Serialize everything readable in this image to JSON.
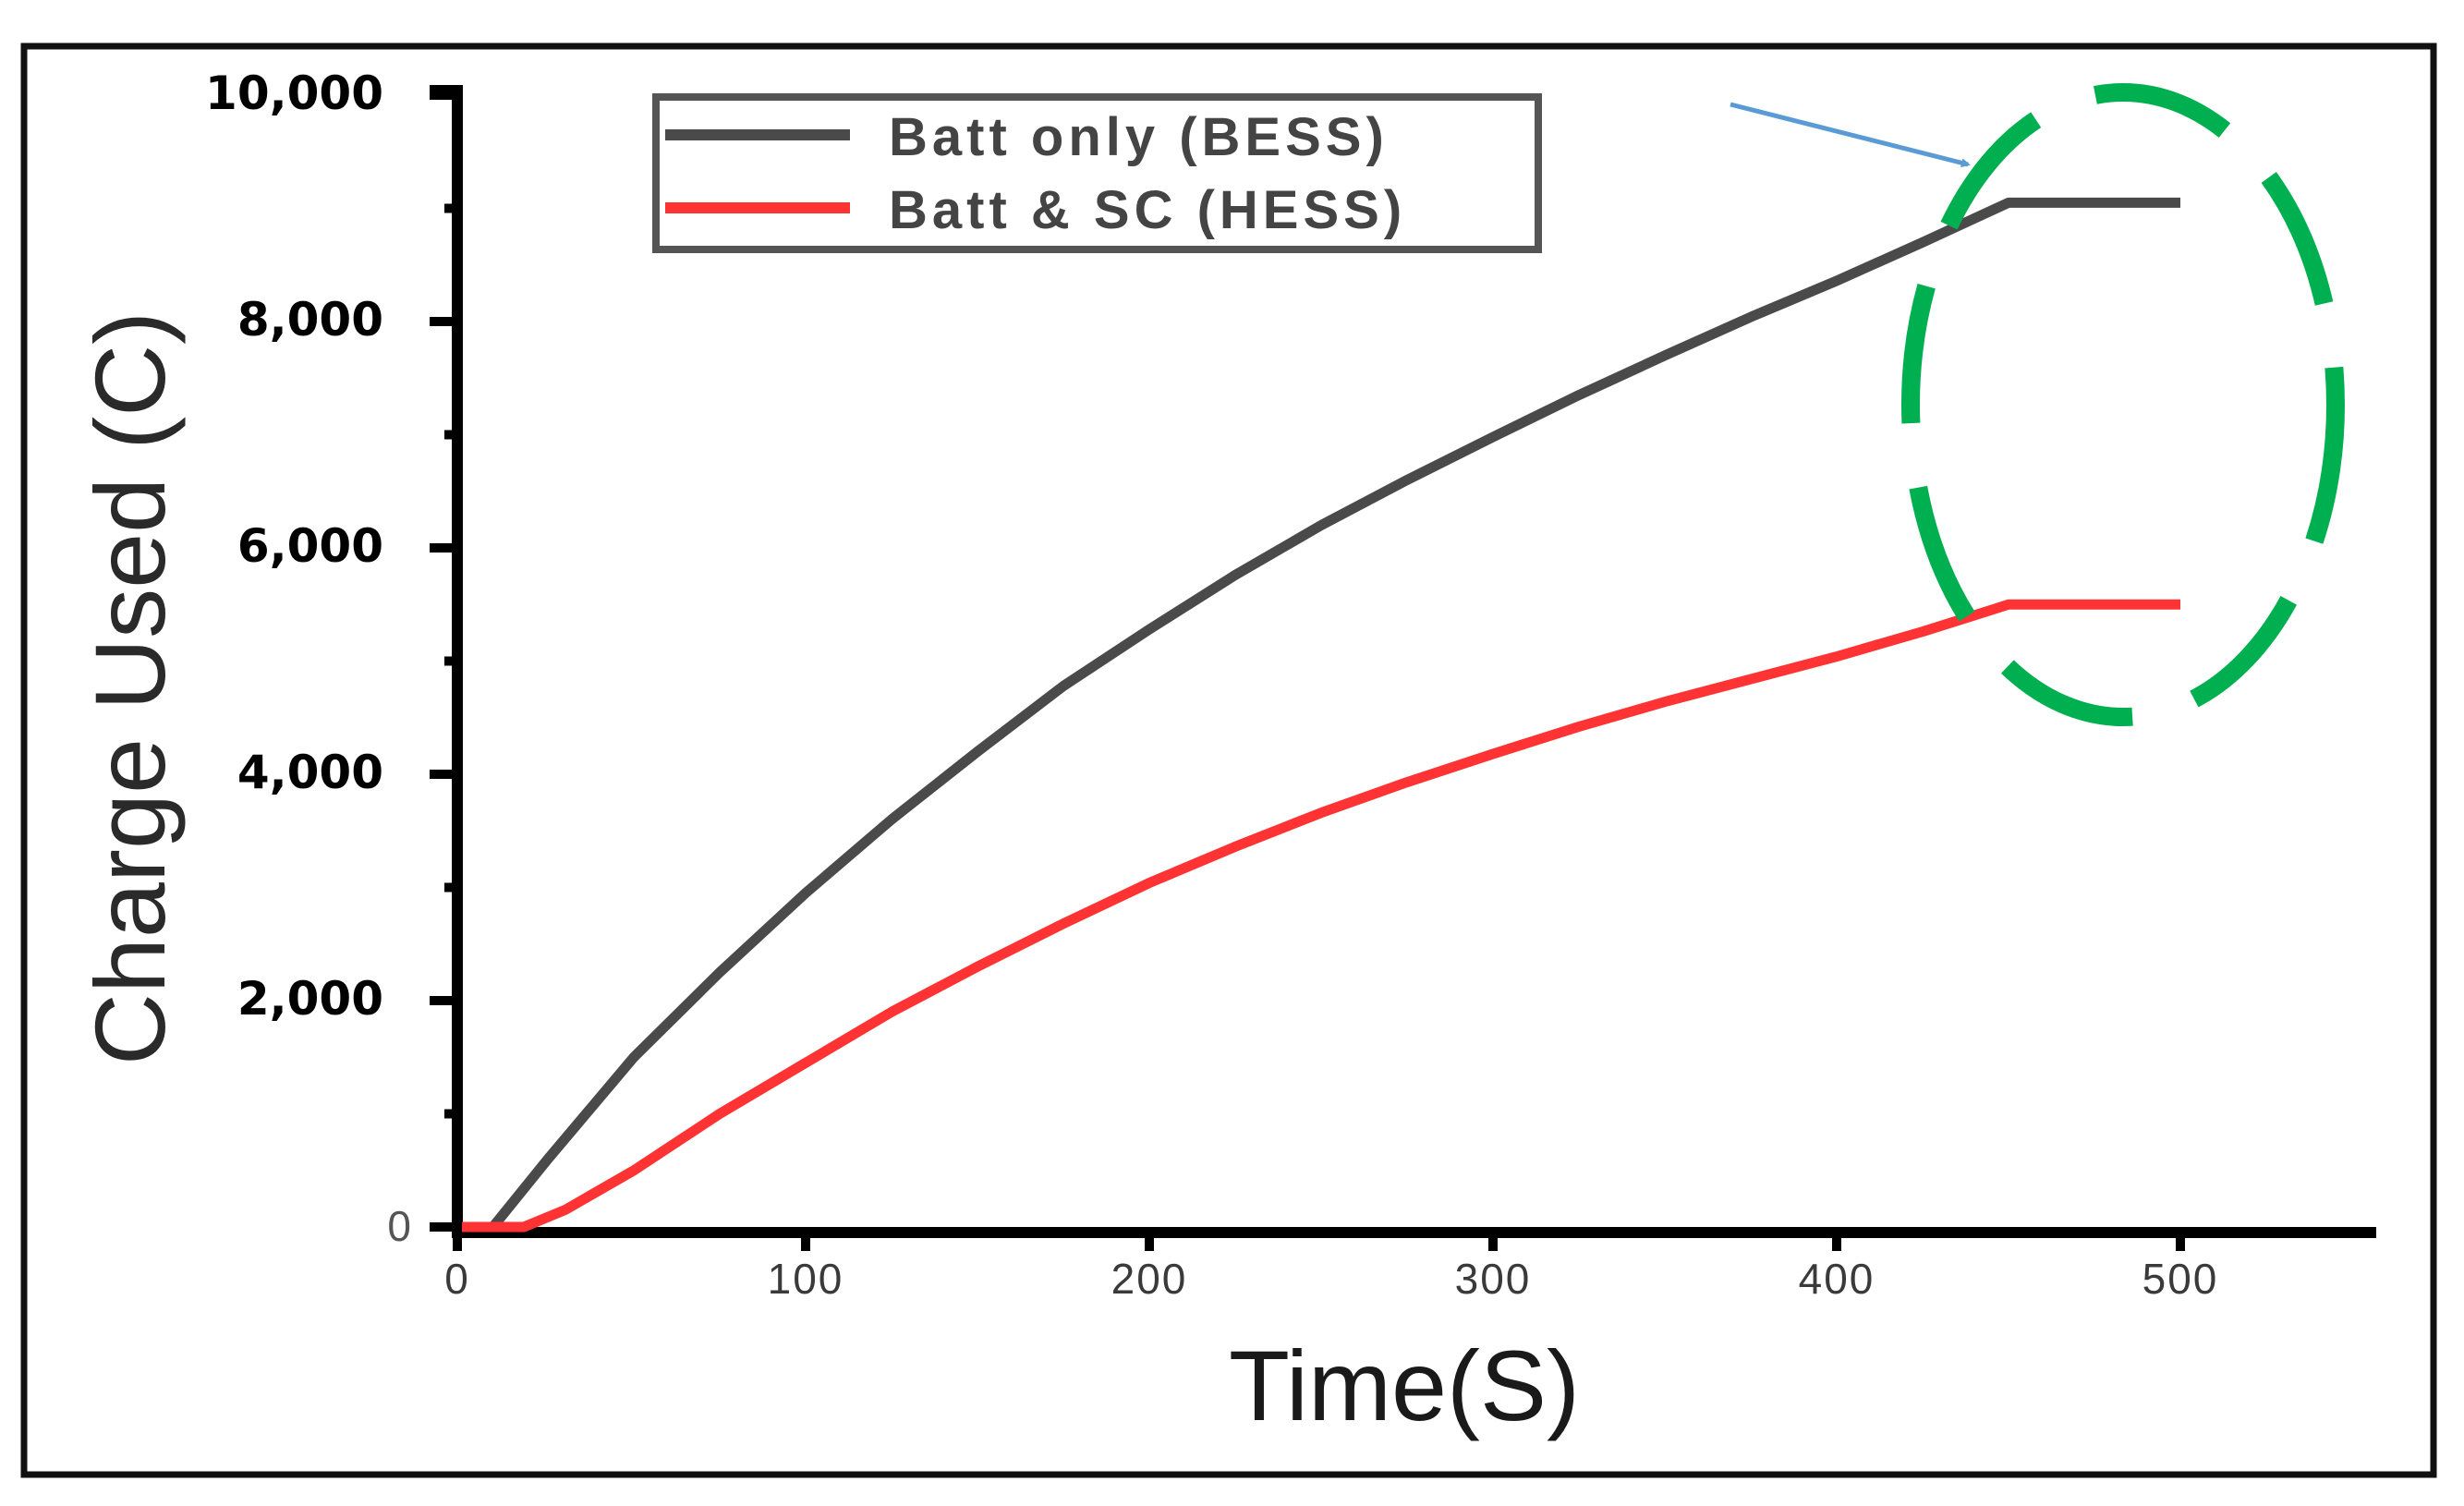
{
  "chart_data": {
    "type": "line",
    "title": "",
    "xlabel": "Time(S)",
    "ylabel": "Charge Used (C)",
    "xlim": [
      0,
      560
    ],
    "ylim": [
      0,
      10000
    ],
    "x_ticks": [
      0,
      100,
      200,
      300,
      400,
      500
    ],
    "x_tick_labels": [
      "0",
      "100",
      "200",
      "300",
      "400",
      "500"
    ],
    "y_ticks": [
      0,
      2000,
      4000,
      6000,
      8000,
      10000
    ],
    "y_tick_labels": [
      "0",
      "2,000",
      "4,000",
      "6,000",
      "8,000",
      "10,000"
    ],
    "y_minor_ticks": [
      1000,
      3000,
      5000,
      7000,
      9000
    ],
    "grid": false,
    "legend_position": "upper center",
    "series": [
      {
        "name": "Batt only (BESS)",
        "color": "#4a4a4a",
        "x": [
          9,
          25,
          50,
          75,
          100,
          125,
          150,
          175,
          200,
          225,
          250,
          275,
          300,
          325,
          350,
          375,
          400,
          425,
          450,
          475,
          500
        ],
        "values": [
          0,
          600,
          1500,
          2250,
          2950,
          3600,
          4200,
          4780,
          5280,
          5760,
          6200,
          6600,
          6980,
          7350,
          7700,
          8040,
          8360,
          8700,
          9050,
          9050,
          9050
        ]
      },
      {
        "name": "Batt & SC (HESS)",
        "color": "#ff3333",
        "x": [
          0,
          18,
          30,
          50,
          75,
          100,
          125,
          150,
          175,
          200,
          225,
          250,
          275,
          300,
          325,
          350,
          375,
          400,
          425,
          450,
          475,
          500
        ],
        "values": [
          0,
          0,
          150,
          500,
          1000,
          1450,
          1900,
          2300,
          2680,
          3040,
          3360,
          3660,
          3930,
          4180,
          4420,
          4640,
          4840,
          5040,
          5260,
          5500,
          5500,
          5500
        ]
      }
    ],
    "annotations": [
      {
        "type": "dashed-ellipse",
        "color": "#00b050",
        "note": "highlights plateau region after ~450 s"
      },
      {
        "type": "arrow",
        "color": "#5b9bd5",
        "note": "points to BESS plateau start"
      }
    ]
  },
  "legend": {
    "items": [
      {
        "label": "Batt only (BESS)",
        "color": "#4a4a4a"
      },
      {
        "label": "Batt & SC (HESS)",
        "color": "#ff3333"
      }
    ]
  },
  "axes": {
    "xlabel": "Time(S)",
    "ylabel": "Charge Used (C)"
  },
  "colors": {
    "ellipse": "#00b050",
    "arrow": "#5b9bd5"
  }
}
